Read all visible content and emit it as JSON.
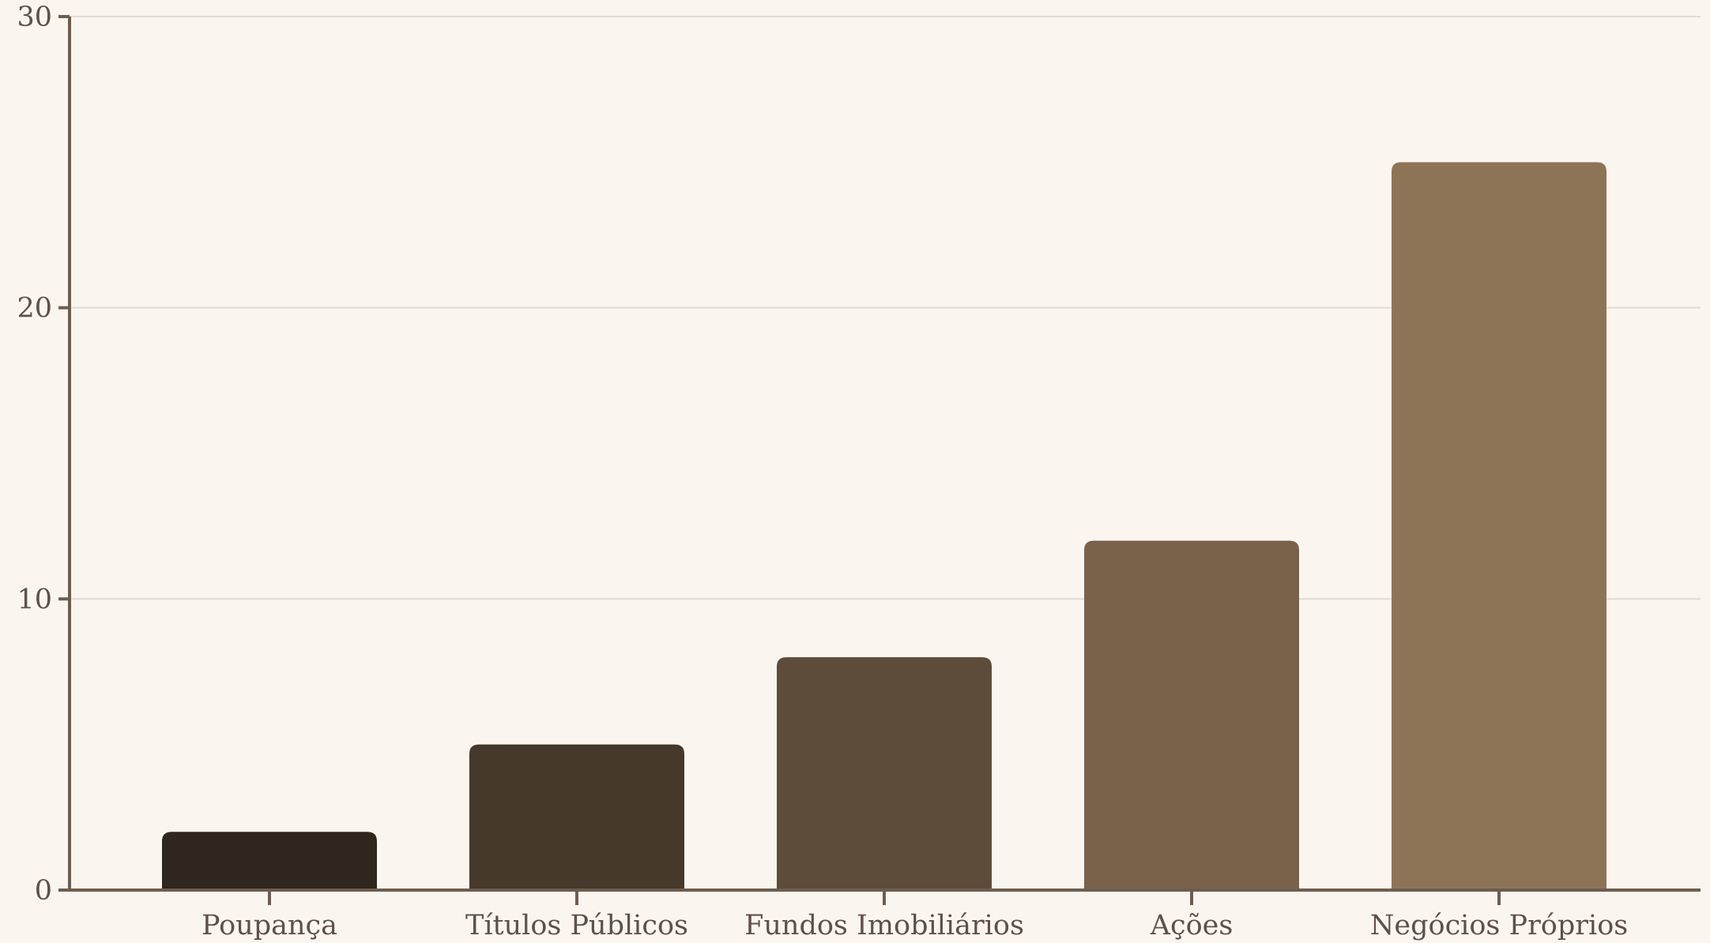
{
  "chart_data": {
    "type": "bar",
    "title": "",
    "xlabel": "",
    "ylabel": "",
    "categories": [
      "Poupança",
      "Títulos Públicos",
      "Fundos Imobiliários",
      "Ações",
      "Negócios Próprios"
    ],
    "values": [
      2,
      5,
      8,
      12,
      25
    ],
    "ylim": [
      0,
      30
    ],
    "yticks": [
      0,
      10,
      20,
      30
    ],
    "ytick_labels": [
      "0",
      "10",
      "20",
      "30"
    ],
    "grid": "horizontal",
    "legend": "none",
    "colors": {
      "bars": [
        "#2f261d",
        "#46382a",
        "#5e4c3a",
        "#7a624a",
        "#8e7456"
      ],
      "background": "#faf6ef",
      "axis": "#6e5d4f",
      "grid": "#e0dbd2",
      "text": "#5e5048"
    }
  }
}
